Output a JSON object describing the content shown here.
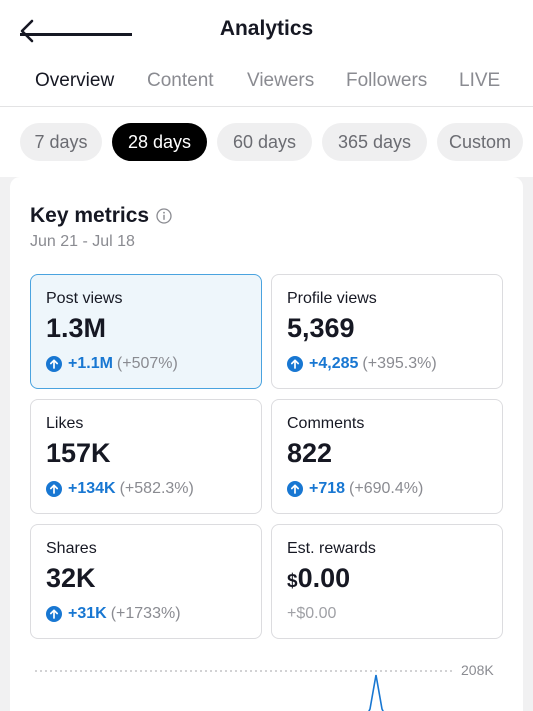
{
  "header": {
    "title": "Analytics",
    "back_icon": "chevron-left-icon"
  },
  "tabs": [
    {
      "label": "Overview",
      "active": true
    },
    {
      "label": "Content",
      "active": false
    },
    {
      "label": "Viewers",
      "active": false
    },
    {
      "label": "Followers",
      "active": false
    },
    {
      "label": "LIVE",
      "active": false
    }
  ],
  "ranges": [
    {
      "label": "7 days",
      "active": false
    },
    {
      "label": "28 days",
      "active": true
    },
    {
      "label": "60 days",
      "active": false
    },
    {
      "label": "365 days",
      "active": false
    },
    {
      "label": "Custom",
      "active": false
    }
  ],
  "key_metrics": {
    "title": "Key metrics",
    "date_range": "Jun 21 - Jul 18",
    "metrics": [
      {
        "label": "Post views",
        "value": "1.3M",
        "delta": "+1.1M",
        "pct": "(+507%)",
        "selected": true
      },
      {
        "label": "Profile views",
        "value": "5,369",
        "delta": "+4,285",
        "pct": "(+395.3%)"
      },
      {
        "label": "Likes",
        "value": "157K",
        "delta": "+134K",
        "pct": "(+582.3%)"
      },
      {
        "label": "Comments",
        "value": "822",
        "delta": "+718",
        "pct": "(+690.4%)"
      },
      {
        "label": "Shares",
        "value": "32K",
        "delta": "+31K",
        "pct": "(+1733%)"
      },
      {
        "label": "Est. rewards",
        "currency": "$",
        "value": "0.00",
        "delta_plain": "+$0.00"
      }
    ]
  },
  "chart": {
    "peak_label": "208K"
  },
  "colors": {
    "accent_blue": "#1877d2",
    "selected_bg": "#eef6fb",
    "selected_border": "#4aa3df"
  }
}
